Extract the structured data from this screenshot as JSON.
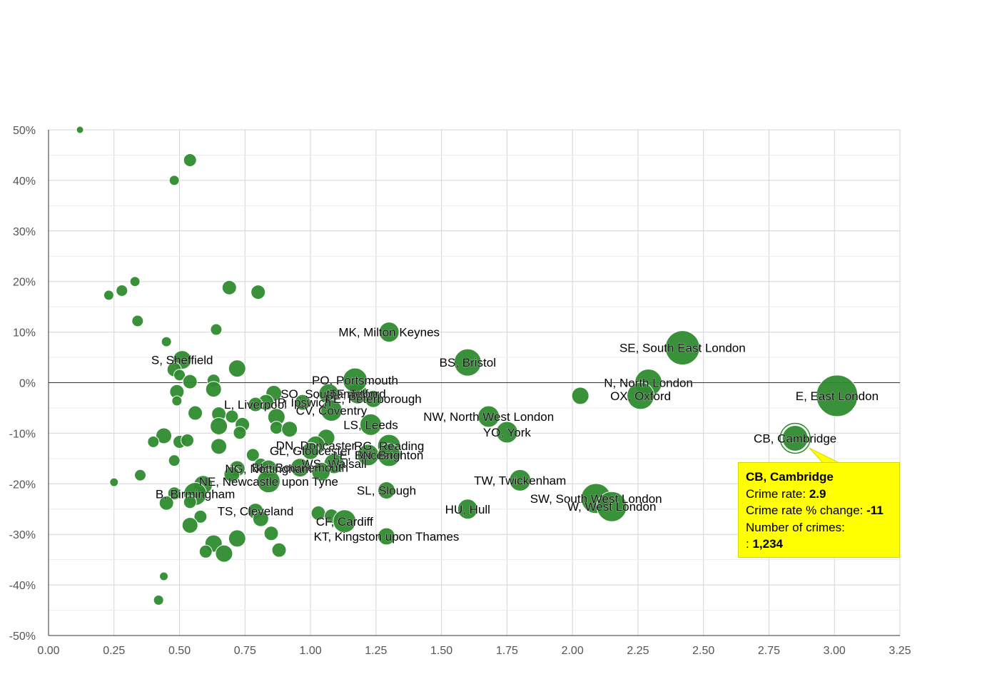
{
  "chart_data": {
    "type": "scatter",
    "variant": "bubble",
    "title": "",
    "xlabel": "",
    "ylabel": "",
    "xlim": [
      0,
      3.25
    ],
    "ylim": [
      -50,
      50
    ],
    "x_ticks": [
      "0.00",
      "0.25",
      "0.50",
      "0.75",
      "1.00",
      "1.25",
      "1.50",
      "1.75",
      "2.00",
      "2.25",
      "2.50",
      "2.75",
      "3.00",
      "3.25"
    ],
    "y_ticks": [
      "50%",
      "40%",
      "30%",
      "20%",
      "10%",
      "0%",
      "-10%",
      "-20%",
      "-30%",
      "-40%",
      "-50%"
    ],
    "grid": true,
    "color": "#2e8b2e",
    "points": [
      {
        "x": 0.12,
        "y": 50,
        "r": 5,
        "label": ""
      },
      {
        "x": 0.54,
        "y": 44,
        "r": 9,
        "label": ""
      },
      {
        "x": 0.48,
        "y": 40,
        "r": 7,
        "label": ""
      },
      {
        "x": 0.23,
        "y": 17.3,
        "r": 7,
        "label": ""
      },
      {
        "x": 0.28,
        "y": 18.2,
        "r": 8,
        "label": ""
      },
      {
        "x": 0.33,
        "y": 20,
        "r": 7,
        "label": ""
      },
      {
        "x": 0.69,
        "y": 18.8,
        "r": 10,
        "label": ""
      },
      {
        "x": 0.8,
        "y": 17.9,
        "r": 10,
        "label": ""
      },
      {
        "x": 0.34,
        "y": 12.2,
        "r": 8,
        "label": ""
      },
      {
        "x": 0.64,
        "y": 10.5,
        "r": 8,
        "label": ""
      },
      {
        "x": 0.45,
        "y": 8.1,
        "r": 7,
        "label": ""
      },
      {
        "x": 0.51,
        "y": 4.5,
        "r": 13,
        "label": "S, Sheffield"
      },
      {
        "x": 0.72,
        "y": 2.8,
        "r": 12,
        "label": ""
      },
      {
        "x": 0.48,
        "y": 2.6,
        "r": 10,
        "label": ""
      },
      {
        "x": 0.5,
        "y": 1.5,
        "r": 8,
        "label": ""
      },
      {
        "x": 0.54,
        "y": 0.2,
        "r": 10,
        "label": ""
      },
      {
        "x": 0.63,
        "y": 0.4,
        "r": 9,
        "label": ""
      },
      {
        "x": 0.63,
        "y": -1.3,
        "r": 11,
        "label": ""
      },
      {
        "x": 0.49,
        "y": -1.8,
        "r": 10,
        "label": ""
      },
      {
        "x": 0.49,
        "y": -3.6,
        "r": 7,
        "label": ""
      },
      {
        "x": 0.56,
        "y": -6,
        "r": 10,
        "label": ""
      },
      {
        "x": 0.65,
        "y": -6.2,
        "r": 10,
        "label": ""
      },
      {
        "x": 0.7,
        "y": -6.7,
        "r": 9,
        "label": ""
      },
      {
        "x": 0.65,
        "y": -8.6,
        "r": 12,
        "label": ""
      },
      {
        "x": 0.74,
        "y": -8.3,
        "r": 10,
        "label": ""
      },
      {
        "x": 0.73,
        "y": -9.9,
        "r": 9,
        "label": ""
      },
      {
        "x": 0.44,
        "y": -10.5,
        "r": 11,
        "label": ""
      },
      {
        "x": 0.4,
        "y": -11.7,
        "r": 8,
        "label": ""
      },
      {
        "x": 0.5,
        "y": -11.7,
        "r": 9,
        "label": ""
      },
      {
        "x": 0.53,
        "y": -11.4,
        "r": 9,
        "label": ""
      },
      {
        "x": 0.65,
        "y": -12.6,
        "r": 11,
        "label": ""
      },
      {
        "x": 0.48,
        "y": -15.4,
        "r": 8,
        "label": ""
      },
      {
        "x": 0.78,
        "y": -14.3,
        "r": 9,
        "label": ""
      },
      {
        "x": 0.81,
        "y": -16.2,
        "r": 9,
        "label": ""
      },
      {
        "x": 0.72,
        "y": -17,
        "r": 11,
        "label": ""
      },
      {
        "x": 0.7,
        "y": -18.1,
        "r": 11,
        "label": ""
      },
      {
        "x": 0.35,
        "y": -18.3,
        "r": 8,
        "label": ""
      },
      {
        "x": 0.25,
        "y": -19.7,
        "r": 6,
        "label": ""
      },
      {
        "x": 0.86,
        "y": -2.1,
        "r": 11,
        "label": ""
      },
      {
        "x": 0.83,
        "y": -3.9,
        "r": 11,
        "label": ""
      },
      {
        "x": 0.79,
        "y": -4.3,
        "r": 10,
        "label": "L, Liverpool"
      },
      {
        "x": 0.97,
        "y": -3.9,
        "r": 11,
        "label": "IP, Ipswich"
      },
      {
        "x": 1.07,
        "y": -2.2,
        "r": 14,
        "label": "SO, Southampton"
      },
      {
        "x": 1.18,
        "y": -2.2,
        "r": 14,
        "label": "TF, Telford"
      },
      {
        "x": 1.24,
        "y": -3.2,
        "r": 12,
        "label": "PE, Peterborough"
      },
      {
        "x": 1.08,
        "y": -5.5,
        "r": 15,
        "label": "CV, Coventry"
      },
      {
        "x": 0.87,
        "y": -6.8,
        "r": 12,
        "label": ""
      },
      {
        "x": 0.87,
        "y": -8.9,
        "r": 9,
        "label": ""
      },
      {
        "x": 0.92,
        "y": -9.2,
        "r": 11,
        "label": ""
      },
      {
        "x": 1.23,
        "y": -8.3,
        "r": 15,
        "label": "LS, Leeds"
      },
      {
        "x": 1.06,
        "y": -10.9,
        "r": 12,
        "label": ""
      },
      {
        "x": 1.02,
        "y": -12.4,
        "r": 13,
        "label": "DN, Doncaster"
      },
      {
        "x": 1.3,
        "y": -12.5,
        "r": 16,
        "label": "RG, Reading"
      },
      {
        "x": 1.0,
        "y": -13.5,
        "r": 12,
        "label": "GL, Gloucester"
      },
      {
        "x": 1.22,
        "y": -14.3,
        "r": 15,
        "label": "LE, Leicester"
      },
      {
        "x": 1.3,
        "y": -14.3,
        "r": 16,
        "label": "BN, Brighton"
      },
      {
        "x": 1.09,
        "y": -16,
        "r": 14,
        "label": "WS, Walsall"
      },
      {
        "x": 0.96,
        "y": -16.8,
        "r": 13,
        "label": "BH, Bournemouth"
      },
      {
        "x": 1.04,
        "y": -17.6,
        "r": 13,
        "label": ""
      },
      {
        "x": 0.84,
        "y": -17,
        "r": 12,
        "label": "NG, Nottingham"
      },
      {
        "x": 0.84,
        "y": -19.5,
        "r": 16,
        "label": "NE, Newcastle upon Tyne"
      },
      {
        "x": 0.59,
        "y": -20.2,
        "r": 13,
        "label": ""
      },
      {
        "x": 0.56,
        "y": -22,
        "r": 16,
        "label": "B, Birmingham"
      },
      {
        "x": 0.48,
        "y": -21.9,
        "r": 9,
        "label": ""
      },
      {
        "x": 0.45,
        "y": -23.8,
        "r": 10,
        "label": ""
      },
      {
        "x": 0.54,
        "y": -23.6,
        "r": 9,
        "label": ""
      },
      {
        "x": 0.58,
        "y": -26.5,
        "r": 9,
        "label": ""
      },
      {
        "x": 0.54,
        "y": -28.2,
        "r": 11,
        "label": ""
      },
      {
        "x": 0.79,
        "y": -25.4,
        "r": 11,
        "label": "TS, Cleveland"
      },
      {
        "x": 0.81,
        "y": -26.9,
        "r": 11,
        "label": ""
      },
      {
        "x": 0.85,
        "y": -29.8,
        "r": 10,
        "label": ""
      },
      {
        "x": 0.72,
        "y": -30.8,
        "r": 12,
        "label": ""
      },
      {
        "x": 0.63,
        "y": -31.8,
        "r": 12,
        "label": ""
      },
      {
        "x": 0.6,
        "y": -33.4,
        "r": 9,
        "label": ""
      },
      {
        "x": 0.67,
        "y": -33.8,
        "r": 12,
        "label": ""
      },
      {
        "x": 0.88,
        "y": -33.1,
        "r": 10,
        "label": ""
      },
      {
        "x": 1.03,
        "y": -25.8,
        "r": 10,
        "label": ""
      },
      {
        "x": 1.08,
        "y": -26.4,
        "r": 10,
        "label": ""
      },
      {
        "x": 1.13,
        "y": -27.4,
        "r": 16,
        "label": "CF, Cardiff"
      },
      {
        "x": 1.29,
        "y": -30.4,
        "r": 12,
        "label": "KT, Kingston upon Thames"
      },
      {
        "x": 1.29,
        "y": -21.3,
        "r": 12,
        "label": "SL, Slough"
      },
      {
        "x": 0.44,
        "y": -38.3,
        "r": 6,
        "label": ""
      },
      {
        "x": 0.42,
        "y": -43,
        "r": 7,
        "label": ""
      },
      {
        "x": 1.3,
        "y": 10,
        "r": 14,
        "label": "MK, Milton Keynes"
      },
      {
        "x": 1.17,
        "y": 0.5,
        "r": 17,
        "label": "PO, Portsmouth"
      },
      {
        "x": 1.6,
        "y": 4,
        "r": 19,
        "label": "BS, Bristol"
      },
      {
        "x": 1.68,
        "y": -6.7,
        "r": 15,
        "label": "NW, North West London"
      },
      {
        "x": 1.75,
        "y": -9.8,
        "r": 15,
        "label": "YO, York"
      },
      {
        "x": 1.8,
        "y": -19.3,
        "r": 15,
        "label": "TW, Twickenham"
      },
      {
        "x": 1.6,
        "y": -25,
        "r": 14,
        "label": "HU, Hull"
      },
      {
        "x": 2.03,
        "y": -2.6,
        "r": 12,
        "label": ""
      },
      {
        "x": 2.09,
        "y": -22.9,
        "r": 21,
        "label": "SW, South West London"
      },
      {
        "x": 2.15,
        "y": -24.5,
        "r": 21,
        "label": "W, West London"
      },
      {
        "x": 2.29,
        "y": 0,
        "r": 19,
        "label": "N, North London"
      },
      {
        "x": 2.26,
        "y": -2.6,
        "r": 19,
        "label": "OX, Oxford"
      },
      {
        "x": 2.42,
        "y": 6.9,
        "r": 24,
        "label": "SE, South East London"
      },
      {
        "x": 3.01,
        "y": -2.6,
        "r": 29,
        "label": "E, East London"
      },
      {
        "x": 2.85,
        "y": -11,
        "r": 18,
        "label": "CB, Cambridge",
        "highlighted": true
      }
    ]
  },
  "tooltip": {
    "title": "CB, Cambridge",
    "rate_label": "Crime rate:",
    "rate_value": "2.9",
    "change_label": "Crime rate % change:",
    "change_value": "-11",
    "count_label": "Number of crimes:",
    "count_prefix": ":",
    "count_value": "1,234"
  }
}
